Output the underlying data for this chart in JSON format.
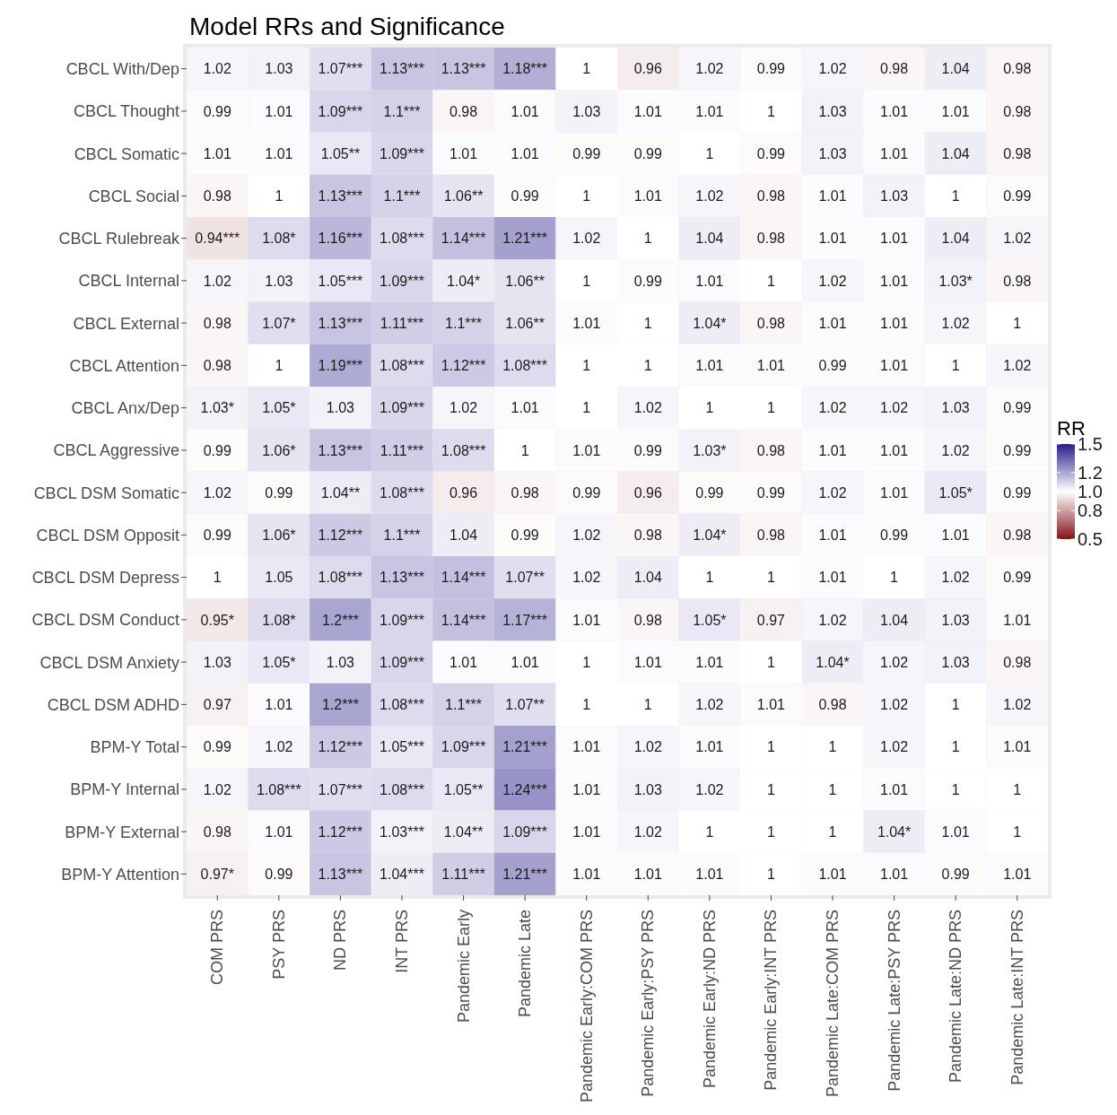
{
  "chart_data": {
    "type": "heatmap",
    "title": "Model RRs and Significance",
    "clabel": "RR",
    "clim": [
      0.5,
      1.5
    ],
    "cticks": [
      {
        "value": 1.5,
        "label": "1.5"
      },
      {
        "value": 1.2,
        "label": "1.2"
      },
      {
        "value": 1.0,
        "label": "1.0"
      },
      {
        "value": 0.8,
        "label": "0.8"
      },
      {
        "value": 0.5,
        "label": "0.5"
      }
    ],
    "categories": [
      "COM PRS",
      "PSY PRS",
      "ND PRS",
      "INT PRS",
      "Pandemic Early",
      "Pandemic Late",
      "Pandemic Early:COM PRS",
      "Pandemic Early:PSY PRS",
      "Pandemic Early:ND PRS",
      "Pandemic Early:INT PRS",
      "Pandemic Late:COM PRS",
      "Pandemic Late:PSY PRS",
      "Pandemic Late:ND PRS",
      "Pandemic Late:INT PRS"
    ],
    "y_categories": [
      "CBCL With/Dep",
      "CBCL Thought",
      "CBCL Somatic",
      "CBCL Social",
      "CBCL Rulebreak",
      "CBCL Internal",
      "CBCL External",
      "CBCL Attention",
      "CBCL Anx/Dep",
      "CBCL Aggressive",
      "CBCL DSM Somatic",
      "CBCL DSM Opposit",
      "CBCL DSM Depress",
      "CBCL DSM Conduct",
      "CBCL DSM Anxiety",
      "CBCL DSM ADHD",
      "BPM-Y Total",
      "BPM-Y Internal",
      "BPM-Y External",
      "BPM-Y Attention"
    ],
    "cells": [
      [
        1.02,
        1.03,
        1.07,
        1.13,
        1.13,
        1.18,
        1,
        0.96,
        1.02,
        0.99,
        1.02,
        0.98,
        1.04,
        0.98
      ],
      [
        0.99,
        1.01,
        1.09,
        1.1,
        0.98,
        1.01,
        1.03,
        1.01,
        1.01,
        1,
        1.03,
        1.01,
        1.01,
        0.98
      ],
      [
        1.01,
        1.01,
        1.05,
        1.09,
        1.01,
        1.01,
        0.99,
        0.99,
        1,
        0.99,
        1.03,
        1.01,
        1.04,
        0.98
      ],
      [
        0.98,
        1,
        1.13,
        1.1,
        1.06,
        0.99,
        1,
        1.01,
        1.02,
        0.98,
        1.01,
        1.03,
        1,
        0.99
      ],
      [
        0.94,
        1.08,
        1.16,
        1.08,
        1.14,
        1.21,
        1.02,
        1,
        1.04,
        0.98,
        1.01,
        1.01,
        1.04,
        1.02
      ],
      [
        1.02,
        1.03,
        1.05,
        1.09,
        1.04,
        1.06,
        1,
        0.99,
        1.01,
        1,
        1.02,
        1.01,
        1.03,
        0.98
      ],
      [
        0.98,
        1.07,
        1.13,
        1.11,
        1.1,
        1.06,
        1.01,
        1,
        1.04,
        0.98,
        1.01,
        1.01,
        1.02,
        1
      ],
      [
        0.98,
        1,
        1.19,
        1.08,
        1.12,
        1.08,
        1,
        1,
        1.01,
        1.01,
        0.99,
        1.01,
        1,
        1.02
      ],
      [
        1.03,
        1.05,
        1.03,
        1.09,
        1.02,
        1.01,
        1,
        1.02,
        1,
        1,
        1.02,
        1.02,
        1.03,
        0.99
      ],
      [
        0.99,
        1.06,
        1.13,
        1.11,
        1.08,
        1,
        1.01,
        0.99,
        1.03,
        0.98,
        1.01,
        1.01,
        1.02,
        0.99
      ],
      [
        1.02,
        0.99,
        1.04,
        1.08,
        0.96,
        0.98,
        0.99,
        0.96,
        0.99,
        0.99,
        1.02,
        1.01,
        1.05,
        0.99
      ],
      [
        0.99,
        1.06,
        1.12,
        1.1,
        1.04,
        0.99,
        1.02,
        0.98,
        1.04,
        0.98,
        1.01,
        0.99,
        1.01,
        0.98
      ],
      [
        1,
        1.05,
        1.08,
        1.13,
        1.14,
        1.07,
        1.02,
        1.04,
        1,
        1,
        1.01,
        1,
        1.02,
        0.99
      ],
      [
        0.95,
        1.08,
        1.2,
        1.09,
        1.14,
        1.17,
        1.01,
        0.98,
        1.05,
        0.97,
        1.02,
        1.04,
        1.03,
        1.01
      ],
      [
        1.03,
        1.05,
        1.03,
        1.09,
        1.01,
        1.01,
        1,
        1.01,
        1.01,
        1,
        1.04,
        1.02,
        1.03,
        0.98
      ],
      [
        0.97,
        1.01,
        1.2,
        1.08,
        1.1,
        1.07,
        1,
        1,
        1.02,
        1.01,
        0.98,
        1.02,
        1,
        1.02
      ],
      [
        0.99,
        1.02,
        1.12,
        1.05,
        1.09,
        1.21,
        1.01,
        1.02,
        1.01,
        1,
        1,
        1.02,
        1,
        1.01
      ],
      [
        1.02,
        1.08,
        1.07,
        1.08,
        1.05,
        1.24,
        1.01,
        1.03,
        1.02,
        1,
        1,
        1.01,
        1,
        1
      ],
      [
        0.98,
        1.01,
        1.12,
        1.03,
        1.04,
        1.09,
        1.01,
        1.02,
        1,
        1,
        1,
        1.04,
        1.01,
        1
      ],
      [
        0.97,
        0.99,
        1.13,
        1.04,
        1.11,
        1.21,
        1.01,
        1.01,
        1.01,
        1,
        1.01,
        1.01,
        0.99,
        1.01
      ]
    ],
    "cell_labels": [
      [
        "1.02",
        "1.03",
        "1.07***",
        "1.13***",
        "1.13***",
        "1.18***",
        "1",
        "0.96",
        "1.02",
        "0.99",
        "1.02",
        "0.98",
        "1.04",
        "0.98"
      ],
      [
        "0.99",
        "1.01",
        "1.09***",
        "1.1***",
        "0.98",
        "1.01",
        "1.03",
        "1.01",
        "1.01",
        "1",
        "1.03",
        "1.01",
        "1.01",
        "0.98"
      ],
      [
        "1.01",
        "1.01",
        "1.05**",
        "1.09***",
        "1.01",
        "1.01",
        "0.99",
        "0.99",
        "1",
        "0.99",
        "1.03",
        "1.01",
        "1.04",
        "0.98"
      ],
      [
        "0.98",
        "1",
        "1.13***",
        "1.1***",
        "1.06**",
        "0.99",
        "1",
        "1.01",
        "1.02",
        "0.98",
        "1.01",
        "1.03",
        "1",
        "0.99"
      ],
      [
        "0.94***",
        "1.08*",
        "1.16***",
        "1.08***",
        "1.14***",
        "1.21***",
        "1.02",
        "1",
        "1.04",
        "0.98",
        "1.01",
        "1.01",
        "1.04",
        "1.02"
      ],
      [
        "1.02",
        "1.03",
        "1.05***",
        "1.09***",
        "1.04*",
        "1.06**",
        "1",
        "0.99",
        "1.01",
        "1",
        "1.02",
        "1.01",
        "1.03*",
        "0.98"
      ],
      [
        "0.98",
        "1.07*",
        "1.13***",
        "1.11***",
        "1.1***",
        "1.06**",
        "1.01",
        "1",
        "1.04*",
        "0.98",
        "1.01",
        "1.01",
        "1.02",
        "1"
      ],
      [
        "0.98",
        "1",
        "1.19***",
        "1.08***",
        "1.12***",
        "1.08***",
        "1",
        "1",
        "1.01",
        "1.01",
        "0.99",
        "1.01",
        "1",
        "1.02"
      ],
      [
        "1.03*",
        "1.05*",
        "1.03",
        "1.09***",
        "1.02",
        "1.01",
        "1",
        "1.02",
        "1",
        "1",
        "1.02",
        "1.02",
        "1.03",
        "0.99"
      ],
      [
        "0.99",
        "1.06*",
        "1.13***",
        "1.11***",
        "1.08***",
        "1",
        "1.01",
        "0.99",
        "1.03*",
        "0.98",
        "1.01",
        "1.01",
        "1.02",
        "0.99"
      ],
      [
        "1.02",
        "0.99",
        "1.04**",
        "1.08***",
        "0.96",
        "0.98",
        "0.99",
        "0.96",
        "0.99",
        "0.99",
        "1.02",
        "1.01",
        "1.05*",
        "0.99"
      ],
      [
        "0.99",
        "1.06*",
        "1.12***",
        "1.1***",
        "1.04",
        "0.99",
        "1.02",
        "0.98",
        "1.04*",
        "0.98",
        "1.01",
        "0.99",
        "1.01",
        "0.98"
      ],
      [
        "1",
        "1.05",
        "1.08***",
        "1.13***",
        "1.14***",
        "1.07**",
        "1.02",
        "1.04",
        "1",
        "1",
        "1.01",
        "1",
        "1.02",
        "0.99"
      ],
      [
        "0.95*",
        "1.08*",
        "1.2***",
        "1.09***",
        "1.14***",
        "1.17***",
        "1.01",
        "0.98",
        "1.05*",
        "0.97",
        "1.02",
        "1.04",
        "1.03",
        "1.01"
      ],
      [
        "1.03",
        "1.05*",
        "1.03",
        "1.09***",
        "1.01",
        "1.01",
        "1",
        "1.01",
        "1.01",
        "1",
        "1.04*",
        "1.02",
        "1.03",
        "0.98"
      ],
      [
        "0.97",
        "1.01",
        "1.2***",
        "1.08***",
        "1.1***",
        "1.07**",
        "1",
        "1",
        "1.02",
        "1.01",
        "0.98",
        "1.02",
        "1",
        "1.02"
      ],
      [
        "0.99",
        "1.02",
        "1.12***",
        "1.05***",
        "1.09***",
        "1.21***",
        "1.01",
        "1.02",
        "1.01",
        "1",
        "1",
        "1.02",
        "1",
        "1.01"
      ],
      [
        "1.02",
        "1.08***",
        "1.07***",
        "1.08***",
        "1.05**",
        "1.24***",
        "1.01",
        "1.03",
        "1.02",
        "1",
        "1",
        "1.01",
        "1",
        "1"
      ],
      [
        "0.98",
        "1.01",
        "1.12***",
        "1.03***",
        "1.04**",
        "1.09***",
        "1.01",
        "1.02",
        "1",
        "1",
        "1",
        "1.04*",
        "1.01",
        "1"
      ],
      [
        "0.97*",
        "0.99",
        "1.13***",
        "1.04***",
        "1.11***",
        "1.21***",
        "1.01",
        "1.01",
        "1.01",
        "1",
        "1.01",
        "1.01",
        "0.99",
        "1.01"
      ]
    ]
  }
}
